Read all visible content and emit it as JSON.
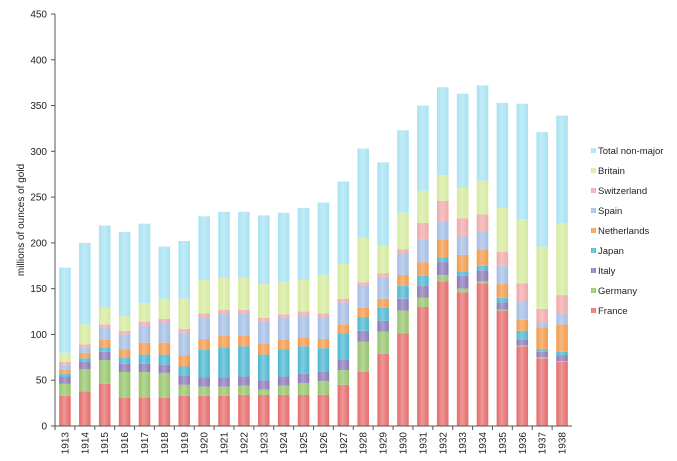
{
  "chart_data": {
    "type": "bar",
    "stacked": true,
    "title": "",
    "xlabel": "",
    "ylabel": "millions of ounces of gold",
    "ylim": [
      0,
      450
    ],
    "yticks": [
      0,
      50,
      100,
      150,
      200,
      250,
      300,
      350,
      400,
      450
    ],
    "grid": false,
    "legend_position": "right",
    "categories": [
      "1913",
      "1914",
      "1915",
      "1916",
      "1917",
      "1918",
      "1919",
      "1920",
      "1921",
      "1922",
      "1923",
      "1924",
      "1925",
      "1926",
      "1927",
      "1928",
      "1929",
      "1930",
      "1931",
      "1932",
      "1933",
      "1934",
      "1935",
      "1936",
      "1937",
      "1938"
    ],
    "series": [
      {
        "name": "France",
        "color": "#e56b6b",
        "values": [
          33,
          38,
          46,
          31,
          31,
          31,
          33,
          33,
          33,
          34,
          34,
          34,
          34,
          34,
          45,
          59,
          79,
          101,
          130,
          158,
          146,
          156,
          126,
          87,
          74,
          70
        ]
      },
      {
        "name": "Germany",
        "color": "#95c46b",
        "values": [
          13,
          24,
          26,
          28,
          28,
          27,
          12,
          10,
          10,
          10,
          6,
          10,
          13,
          15,
          16,
          33,
          24,
          25,
          10,
          7,
          4,
          2,
          1,
          1,
          1,
          1
        ]
      },
      {
        "name": "Italy",
        "color": "#8a78b8",
        "values": [
          8,
          8,
          9,
          9,
          9,
          9,
          10,
          10,
          10,
          10,
          10,
          10,
          10,
          10,
          12,
          12,
          12,
          13,
          13,
          14,
          14,
          12,
          8,
          6,
          6,
          6
        ]
      },
      {
        "name": "Japan",
        "color": "#4bb6d0",
        "values": [
          3,
          4,
          5,
          7,
          10,
          11,
          10,
          30,
          33,
          33,
          28,
          30,
          30,
          26,
          28,
          15,
          14,
          14,
          11,
          5,
          5,
          5,
          5,
          10,
          3,
          4
        ]
      },
      {
        "name": "Netherlands",
        "color": "#f2994a",
        "values": [
          5,
          6,
          8,
          9,
          13,
          13,
          12,
          12,
          13,
          12,
          12,
          10,
          10,
          10,
          10,
          10,
          10,
          12,
          15,
          20,
          18,
          18,
          15,
          12,
          24,
          30
        ]
      },
      {
        "name": "Spain",
        "color": "#a3bde4",
        "values": [
          5,
          6,
          13,
          16,
          19,
          22,
          25,
          24,
          24,
          24,
          24,
          24,
          24,
          24,
          24,
          24,
          24,
          24,
          25,
          20,
          20,
          20,
          20,
          20,
          5,
          12
        ]
      },
      {
        "name": "Switzerland",
        "color": "#f0a8a8",
        "values": [
          3,
          3,
          4,
          4,
          4,
          4,
          4,
          4,
          4,
          4,
          4,
          4,
          4,
          4,
          4,
          4,
          4,
          4,
          18,
          22,
          20,
          18,
          15,
          20,
          15,
          20
        ]
      },
      {
        "name": "Britain",
        "color": "#d4ea9c",
        "values": [
          10,
          22,
          18,
          16,
          20,
          22,
          33,
          37,
          35,
          35,
          37,
          35,
          35,
          42,
          38,
          49,
          30,
          40,
          35,
          28,
          33,
          37,
          48,
          70,
          68,
          78
        ]
      },
      {
        "name": "Total non-major",
        "color": "#a7e2f2",
        "values": [
          93,
          89,
          90,
          92,
          87,
          57,
          63,
          69,
          72,
          72,
          75,
          76,
          78,
          79,
          90,
          97,
          91,
          90,
          93,
          96,
          103,
          104,
          115,
          126,
          125,
          118
        ]
      }
    ]
  }
}
